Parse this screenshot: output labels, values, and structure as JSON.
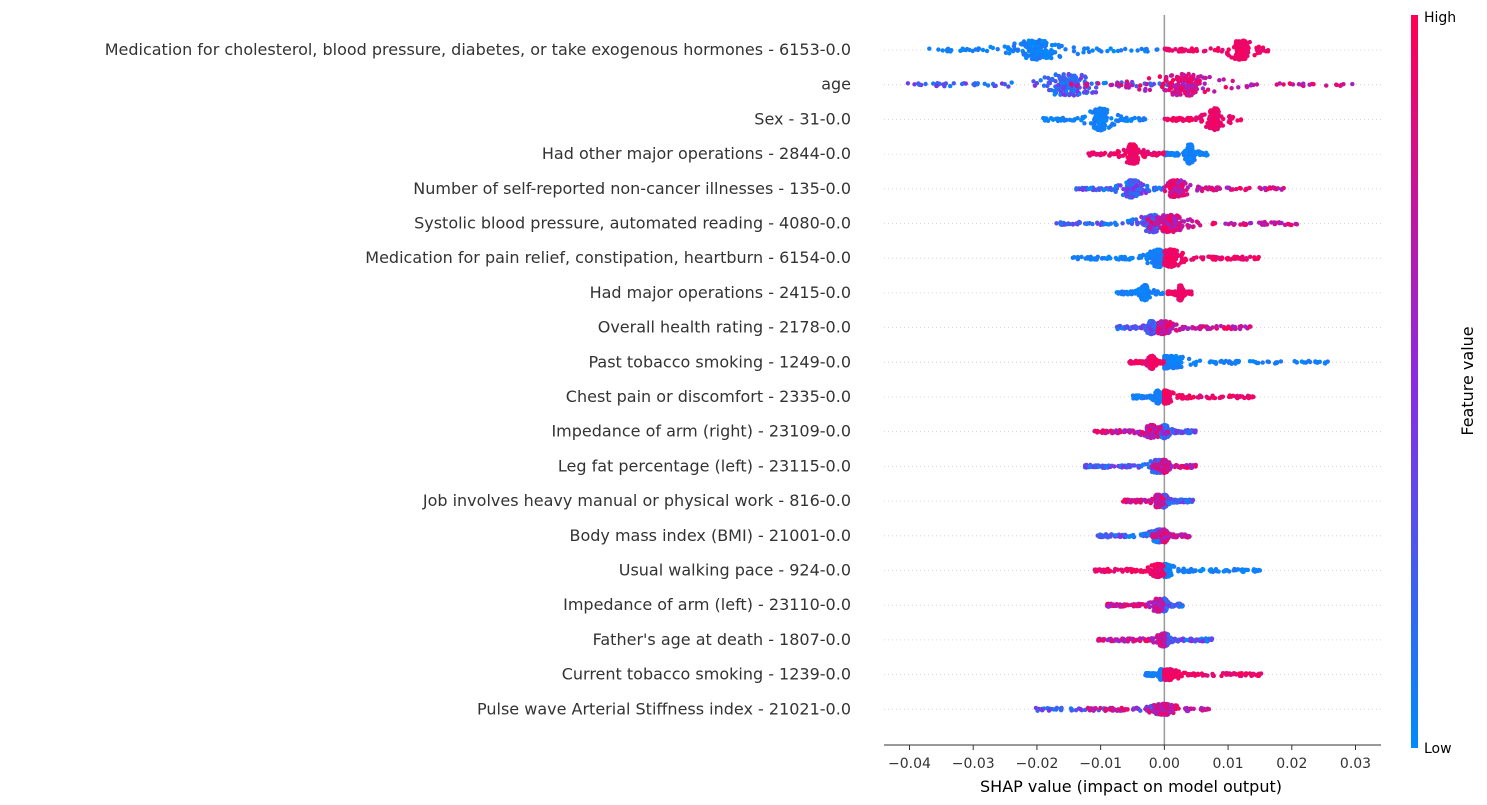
{
  "chart_data": {
    "type": "scatter",
    "subtype": "shap-beeswarm",
    "xlabel": "SHAP value (impact on model output)",
    "xlim": [
      -0.044,
      0.034
    ],
    "xticks": [
      -0.04,
      -0.03,
      -0.02,
      -0.01,
      0.0,
      0.01,
      0.02,
      0.03
    ],
    "xtick_labels": [
      "−0.04",
      "−0.03",
      "−0.02",
      "−0.01",
      "0.00",
      "0.01",
      "0.02",
      "0.03"
    ],
    "grid": false,
    "row_guides": "dotted",
    "colorbar": {
      "label": "Feature value",
      "high_label": "High",
      "low_label": "Low",
      "high_color": "#ff0052",
      "mid_color": "#8a2be2",
      "low_color": "#008bfb"
    },
    "features": [
      {
        "name": "Medication for cholesterol, blood pressure, diabetes, or take exogenous hormones - 6153-0.0",
        "low_span": [
          -0.037,
          0.0
        ],
        "high_span": [
          0.0,
          0.0165
        ],
        "low_peaks": [
          -0.02
        ],
        "high_peaks": [
          0.012
        ],
        "spread": 0.9
      },
      {
        "name": "age",
        "low_span": [
          -0.041,
          0.005
        ],
        "high_span": [
          -0.015,
          0.03
        ],
        "low_peaks": [
          -0.015
        ],
        "high_peaks": [
          0.003
        ],
        "spread": 1.0,
        "mixed": true
      },
      {
        "name": "Sex - 31-0.0",
        "low_span": [
          -0.019,
          -0.003
        ],
        "high_span": [
          0.0,
          0.0125
        ],
        "low_peaks": [
          -0.01
        ],
        "high_peaks": [
          0.008
        ],
        "spread": 1.0
      },
      {
        "name": "Had other major operations - 2844-0.0",
        "low_span": [
          0.0,
          0.007
        ],
        "high_span": [
          -0.012,
          0.0
        ],
        "low_peaks": [
          0.004
        ],
        "high_peaks": [
          -0.005
        ],
        "spread": 0.9
      },
      {
        "name": "Number of self-reported non-cancer illnesses - 135-0.0",
        "low_span": [
          -0.014,
          0.0
        ],
        "high_span": [
          0.0,
          0.019
        ],
        "low_peaks": [
          -0.005
        ],
        "high_peaks": [
          0.002
        ],
        "spread": 0.8,
        "mixed": true
      },
      {
        "name": "Systolic blood pressure, automated reading - 4080-0.0",
        "low_span": [
          -0.017,
          0.002
        ],
        "high_span": [
          -0.003,
          0.021
        ],
        "low_peaks": [
          -0.002
        ],
        "high_peaks": [
          0.001
        ],
        "spread": 0.8,
        "mixed": true
      },
      {
        "name": "Medication for pain relief, constipation, heartburn - 6154-0.0",
        "low_span": [
          -0.0145,
          0.0
        ],
        "high_span": [
          0.0,
          0.015
        ],
        "low_peaks": [
          -0.001
        ],
        "high_peaks": [
          0.001
        ],
        "spread": 0.8
      },
      {
        "name": "Had major operations - 2415-0.0",
        "low_span": [
          -0.0075,
          0.0
        ],
        "high_span": [
          0.0005,
          0.0045
        ],
        "low_peaks": [
          -0.003
        ],
        "high_peaks": [
          0.0025
        ],
        "spread": 0.7
      },
      {
        "name": "Overall health rating - 2178-0.0",
        "low_span": [
          -0.0075,
          0.0
        ],
        "high_span": [
          -0.001,
          0.0135
        ],
        "low_peaks": [
          -0.002
        ],
        "high_peaks": [
          0.0
        ],
        "spread": 0.6,
        "mixed": true
      },
      {
        "name": "Past tobacco smoking - 1249-0.0",
        "low_span": [
          0.0,
          0.026
        ],
        "high_span": [
          -0.0055,
          0.0
        ],
        "low_peaks": [
          0.001
        ],
        "high_peaks": [
          -0.002
        ],
        "spread": 0.6
      },
      {
        "name": "Chest pain or discomfort - 2335-0.0",
        "low_span": [
          -0.005,
          0.0
        ],
        "high_span": [
          0.0,
          0.014
        ],
        "low_peaks": [
          -0.001
        ],
        "high_peaks": [
          0.0
        ],
        "spread": 0.6
      },
      {
        "name": "Impedance of arm (right) - 23109-0.0",
        "low_span": [
          -0.002,
          0.005
        ],
        "high_span": [
          -0.011,
          0.001
        ],
        "low_peaks": [
          0.0
        ],
        "high_peaks": [
          -0.002
        ],
        "spread": 0.6,
        "mixed": true
      },
      {
        "name": "Leg fat percentage (left) - 23115-0.0",
        "low_span": [
          -0.0125,
          0.0
        ],
        "high_span": [
          -0.002,
          0.005
        ],
        "low_peaks": [
          -0.001
        ],
        "high_peaks": [
          0.0
        ],
        "spread": 0.6,
        "mixed": true
      },
      {
        "name": "Job involves heavy manual or physical work - 816-0.0",
        "low_span": [
          -0.001,
          0.0045
        ],
        "high_span": [
          -0.0065,
          0.0
        ],
        "low_peaks": [
          0.0
        ],
        "high_peaks": [
          -0.001
        ],
        "spread": 0.6,
        "mixed": true
      },
      {
        "name": "Body mass index (BMI) - 21001-0.0",
        "low_span": [
          -0.0105,
          0.001
        ],
        "high_span": [
          -0.002,
          0.004
        ],
        "low_peaks": [
          -0.001
        ],
        "high_peaks": [
          0.0
        ],
        "spread": 0.6,
        "mixed": true
      },
      {
        "name": "Usual walking pace - 924-0.0",
        "low_span": [
          0.0,
          0.015
        ],
        "high_span": [
          -0.011,
          0.0
        ],
        "low_peaks": [
          0.0
        ],
        "high_peaks": [
          -0.001
        ],
        "spread": 0.6
      },
      {
        "name": "Impedance of arm (left) - 23110-0.0",
        "low_span": [
          -0.001,
          0.003
        ],
        "high_span": [
          -0.009,
          0.0
        ],
        "low_peaks": [
          0.0
        ],
        "high_peaks": [
          -0.001
        ],
        "spread": 0.6,
        "mixed": true
      },
      {
        "name": "Father's age at death - 1807-0.0",
        "low_span": [
          0.0,
          0.0075
        ],
        "high_span": [
          -0.0105,
          0.0
        ],
        "low_peaks": [
          0.0
        ],
        "high_peaks": [
          0.0
        ],
        "spread": 0.6,
        "mixed": true
      },
      {
        "name": "Current tobacco smoking - 1239-0.0",
        "low_span": [
          -0.003,
          0.0
        ],
        "high_span": [
          0.0,
          0.0155
        ],
        "low_peaks": [
          -0.0005
        ],
        "high_peaks": [
          0.0005
        ],
        "spread": 0.5
      },
      {
        "name": "Pulse wave Arterial Stiffness index - 21021-0.0",
        "low_span": [
          -0.0205,
          0.0005
        ],
        "high_span": [
          -0.012,
          0.007
        ],
        "low_peaks": [
          0.0
        ],
        "high_peaks": [
          0.0
        ],
        "spread": 0.5,
        "mixed": true
      }
    ]
  }
}
